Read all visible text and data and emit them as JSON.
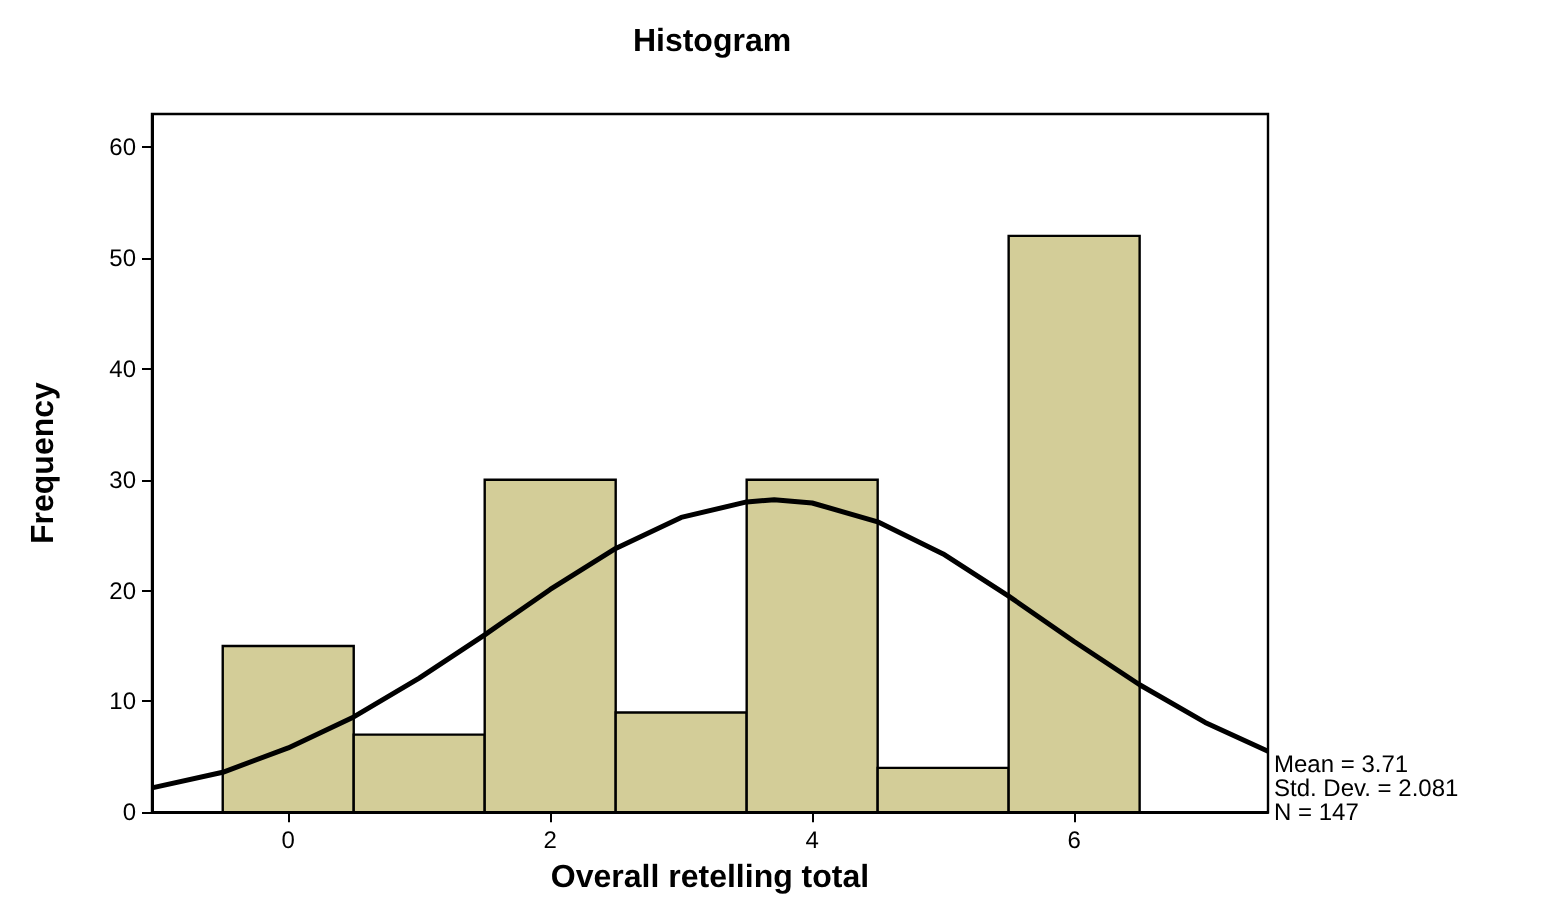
{
  "chart_data": {
    "type": "histogram",
    "title": "Histogram",
    "xlabel": "Overall retelling total",
    "ylabel": "Frequency",
    "bins": [
      -0.5,
      0.5,
      1.5,
      2.5,
      3.5,
      4.5,
      5.5,
      6.5
    ],
    "values": [
      15,
      7,
      30,
      9,
      30,
      4,
      52
    ],
    "color": "#d3cd98",
    "series": [
      {
        "type": "line",
        "color": "#000000",
        "x": [
          -1.04,
          -0.5,
          0,
          0.5,
          1,
          1.5,
          2,
          2.5,
          3,
          3.5,
          3.71,
          4,
          4.5,
          5,
          5.5,
          6,
          6.5,
          7,
          7.48
        ],
        "values": [
          2.2,
          3.6,
          5.8,
          8.6,
          12.1,
          16.0,
          20.1,
          23.8,
          26.6,
          28.0,
          28.2,
          27.9,
          26.2,
          23.3,
          19.5,
          15.4,
          11.5,
          8.1,
          5.5
        ]
      }
    ],
    "xlim": [
      -1.04,
      7.48
    ],
    "xticks": [
      0,
      2,
      4,
      6
    ],
    "ylim": [
      0,
      63
    ],
    "yticks": [
      0,
      10,
      20,
      30,
      40,
      50,
      60
    ],
    "grid": false,
    "marker": "none",
    "line_style": "solid",
    "annotations": [
      "Mean = 3.71",
      "Std. Dev. = 2.081",
      "N = 147"
    ]
  }
}
